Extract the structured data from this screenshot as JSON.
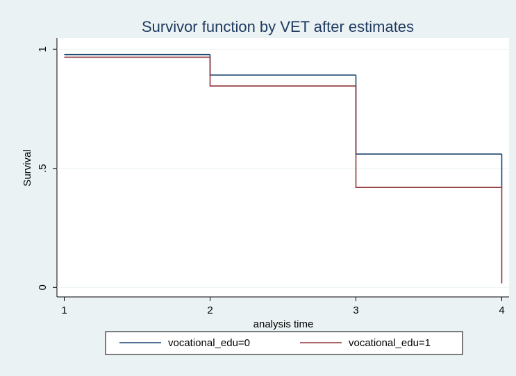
{
  "chart_data": {
    "type": "step",
    "title": "Survivor function by VET after estimates",
    "x_label": "analysis time",
    "y_label": "Survival",
    "x": [
      1,
      2,
      3,
      4
    ],
    "series": [
      {
        "name": "vocational_edu=0",
        "color": "#1a476f",
        "values": [
          0.978,
          0.892,
          0.56,
          0.42
        ]
      },
      {
        "name": "vocational_edu=1",
        "color": "#90353b",
        "values": [
          0.967,
          0.846,
          0.42,
          0.017
        ]
      }
    ],
    "xlim": [
      0.95,
      4.05
    ],
    "ylim": [
      -0.04,
      1.047
    ],
    "xticks": [
      1,
      2,
      3,
      4
    ],
    "yticks": [
      0,
      {
        "value": 0.5,
        "label": ".5"
      },
      1
    ],
    "grid": true,
    "legend": "bottom"
  }
}
